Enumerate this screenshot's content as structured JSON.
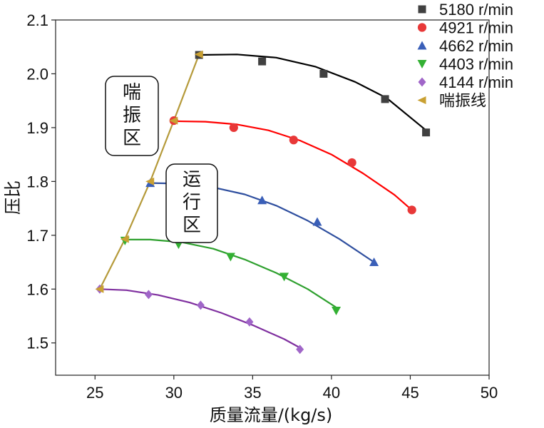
{
  "chart_data": {
    "type": "line",
    "title": "",
    "xlabel": "质量流量/(kg/s)",
    "ylabel": "压比",
    "xlim": [
      22.5,
      50
    ],
    "ylim": [
      1.44,
      2.1
    ],
    "xticks": [
      25,
      30,
      35,
      40,
      45,
      50
    ],
    "yticks": [
      1.5,
      1.6,
      1.7,
      1.8,
      1.9,
      2.0,
      2.1
    ],
    "xtick_labels": [
      "25",
      "30",
      "35",
      "40",
      "45",
      "50"
    ],
    "ytick_labels": [
      "1.5",
      "1.6",
      "1.7",
      "1.8",
      "1.9",
      "2.0",
      "2.1"
    ],
    "grid": false,
    "legend_position": "top-right",
    "series": [
      {
        "name": "5180 r/min",
        "color": "#000000",
        "marker_color": "#404040",
        "marker": "square",
        "points": [
          [
            31.6,
            2.035
          ],
          [
            35.6,
            2.023
          ],
          [
            39.5,
            2.0
          ],
          [
            43.4,
            1.953
          ],
          [
            46.0,
            1.891
          ]
        ],
        "fit": [
          [
            31.6,
            2.035
          ],
          [
            34.0,
            2.036
          ],
          [
            36.5,
            2.03
          ],
          [
            39.0,
            2.013
          ],
          [
            41.5,
            1.985
          ],
          [
            43.5,
            1.955
          ],
          [
            46.0,
            1.895
          ]
        ]
      },
      {
        "name": "4921 r/min",
        "color": "#ff0000",
        "marker_color": "#e83838",
        "marker": "circle",
        "points": [
          [
            30.0,
            1.913
          ],
          [
            33.8,
            1.9
          ],
          [
            37.6,
            1.877
          ],
          [
            41.3,
            1.835
          ],
          [
            45.1,
            1.747
          ]
        ],
        "fit": [
          [
            30.0,
            1.912
          ],
          [
            32.0,
            1.911
          ],
          [
            34.0,
            1.906
          ],
          [
            36.0,
            1.895
          ],
          [
            38.0,
            1.876
          ],
          [
            40.0,
            1.85
          ],
          [
            42.0,
            1.815
          ],
          [
            44.0,
            1.775
          ],
          [
            45.1,
            1.747
          ]
        ]
      },
      {
        "name": "4662 r/min",
        "color": "#2f4f9f",
        "marker_color": "#3a5fb8",
        "marker": "triangle-up",
        "points": [
          [
            28.5,
            1.797
          ],
          [
            32.0,
            1.787
          ],
          [
            35.6,
            1.765
          ],
          [
            39.1,
            1.725
          ],
          [
            42.7,
            1.65
          ]
        ],
        "fit": [
          [
            28.5,
            1.797
          ],
          [
            30.5,
            1.796
          ],
          [
            32.5,
            1.789
          ],
          [
            34.5,
            1.776
          ],
          [
            36.5,
            1.755
          ],
          [
            38.5,
            1.727
          ],
          [
            40.5,
            1.693
          ],
          [
            42.7,
            1.65
          ]
        ]
      },
      {
        "name": "4403 r/min",
        "color": "#2ea02e",
        "marker_color": "#33b033",
        "marker": "triangle-down",
        "points": [
          [
            26.9,
            1.69
          ],
          [
            30.3,
            1.683
          ],
          [
            33.6,
            1.66
          ],
          [
            37.0,
            1.623
          ],
          [
            40.3,
            1.56
          ]
        ],
        "fit": [
          [
            26.9,
            1.692
          ],
          [
            28.5,
            1.692
          ],
          [
            30.5,
            1.687
          ],
          [
            32.5,
            1.675
          ],
          [
            34.5,
            1.655
          ],
          [
            36.5,
            1.63
          ],
          [
            38.5,
            1.6
          ],
          [
            40.3,
            1.566
          ]
        ]
      },
      {
        "name": "4144 r/min",
        "color": "#7f2f9f",
        "marker_color": "#a066c8",
        "marker": "diamond",
        "points": [
          [
            25.3,
            1.6
          ],
          [
            28.4,
            1.59
          ],
          [
            31.7,
            1.57
          ],
          [
            34.8,
            1.539
          ],
          [
            38.0,
            1.488
          ]
        ],
        "fit": [
          [
            25.3,
            1.6
          ],
          [
            27.0,
            1.598
          ],
          [
            29.0,
            1.589
          ],
          [
            31.0,
            1.575
          ],
          [
            33.0,
            1.556
          ],
          [
            35.0,
            1.533
          ],
          [
            37.0,
            1.507
          ],
          [
            38.0,
            1.491
          ]
        ]
      },
      {
        "name": "喘振线",
        "color": "#b59a3a",
        "marker_color": "#c9a032",
        "marker": "triangle-left",
        "points": [
          [
            25.3,
            1.6
          ],
          [
            26.9,
            1.693
          ],
          [
            28.5,
            1.8
          ],
          [
            30.0,
            1.913
          ],
          [
            31.6,
            2.036
          ]
        ],
        "fit": [
          [
            25.3,
            1.6
          ],
          [
            26.9,
            1.693
          ],
          [
            28.5,
            1.8
          ],
          [
            30.0,
            1.913
          ],
          [
            31.6,
            2.036
          ]
        ]
      }
    ],
    "annotations": {
      "surge_region_chars": [
        "喘",
        "振",
        "区"
      ],
      "operating_region_chars": [
        "运",
        "行",
        "区"
      ]
    }
  }
}
